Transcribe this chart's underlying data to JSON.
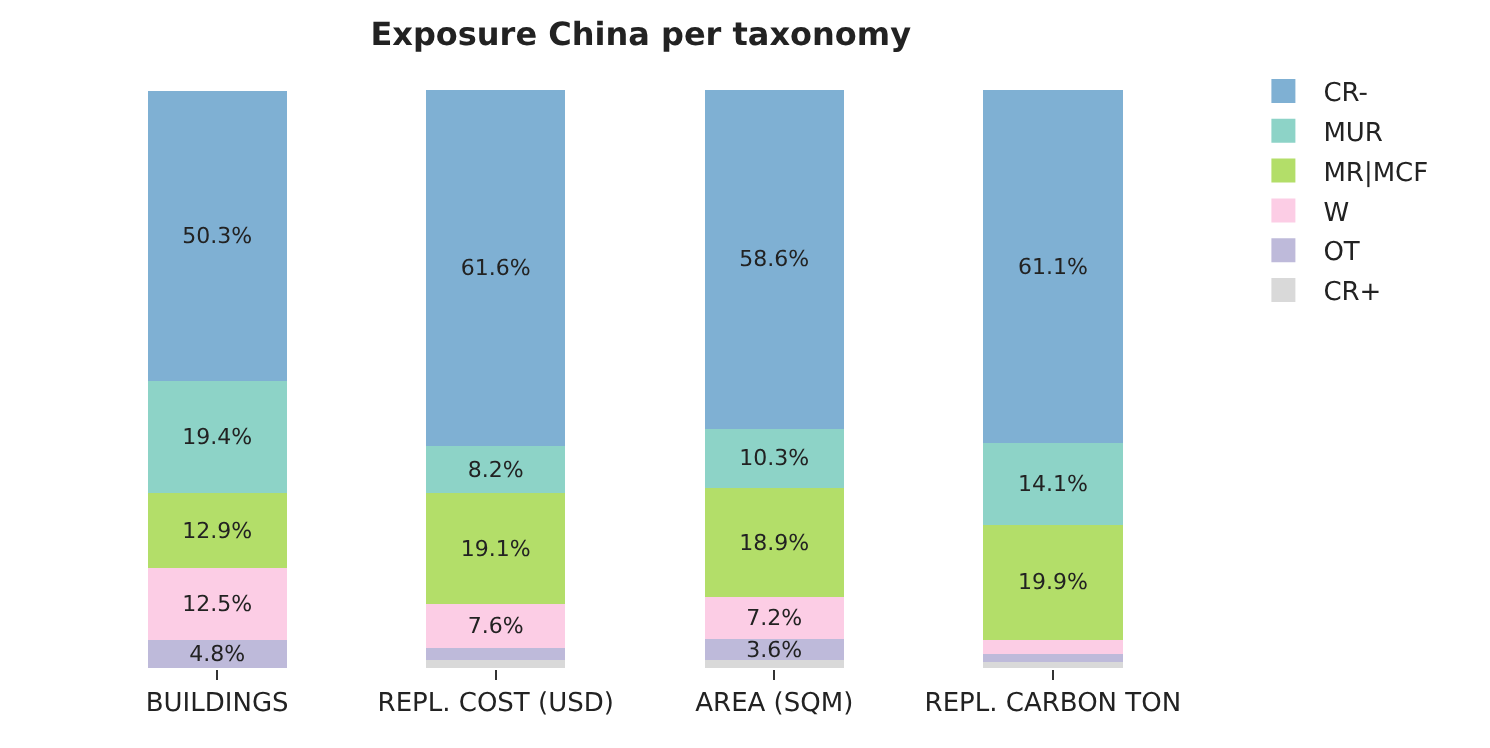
{
  "chart_data": {
    "type": "bar",
    "title": "Exposure China per taxonomy",
    "stacked": true,
    "categories": [
      "BUILDINGS",
      "REPL. COST (USD)",
      "AREA (SQM)",
      "REPL. CARBON TON"
    ],
    "series": [
      {
        "name": "CR+",
        "color": "#d9d9d9",
        "values": [
          0,
          1.3,
          1.4,
          1.1
        ],
        "value_labels": [
          null,
          null,
          null,
          null
        ]
      },
      {
        "name": "OT",
        "color": "#bebada",
        "values": [
          4.8,
          2.2,
          3.6,
          1.3
        ],
        "value_labels": [
          "4.8%",
          null,
          "3.6%",
          null
        ]
      },
      {
        "name": "W",
        "color": "#fccde5",
        "values": [
          12.5,
          7.6,
          7.2,
          2.5
        ],
        "value_labels": [
          "12.5%",
          "7.6%",
          "7.2%",
          null
        ]
      },
      {
        "name": "MR|MCF",
        "color": "#b3de69",
        "values": [
          12.9,
          19.1,
          18.9,
          19.9
        ],
        "value_labels": [
          "12.9%",
          "19.1%",
          "18.9%",
          "19.9%"
        ]
      },
      {
        "name": "MUR",
        "color": "#8dd3c7",
        "values": [
          19.4,
          8.2,
          10.3,
          14.1
        ],
        "value_labels": [
          "19.4%",
          "8.2%",
          "10.3%",
          "14.1%"
        ]
      },
      {
        "name": "CR-",
        "color": "#7fb0d3",
        "values": [
          50.3,
          61.6,
          58.6,
          61.1
        ],
        "value_labels": [
          "50.3%",
          "61.6%",
          "58.6%",
          "61.1%"
        ]
      }
    ],
    "ylim": [
      0,
      100
    ],
    "tick_labels": "x",
    "legend": "top right"
  }
}
